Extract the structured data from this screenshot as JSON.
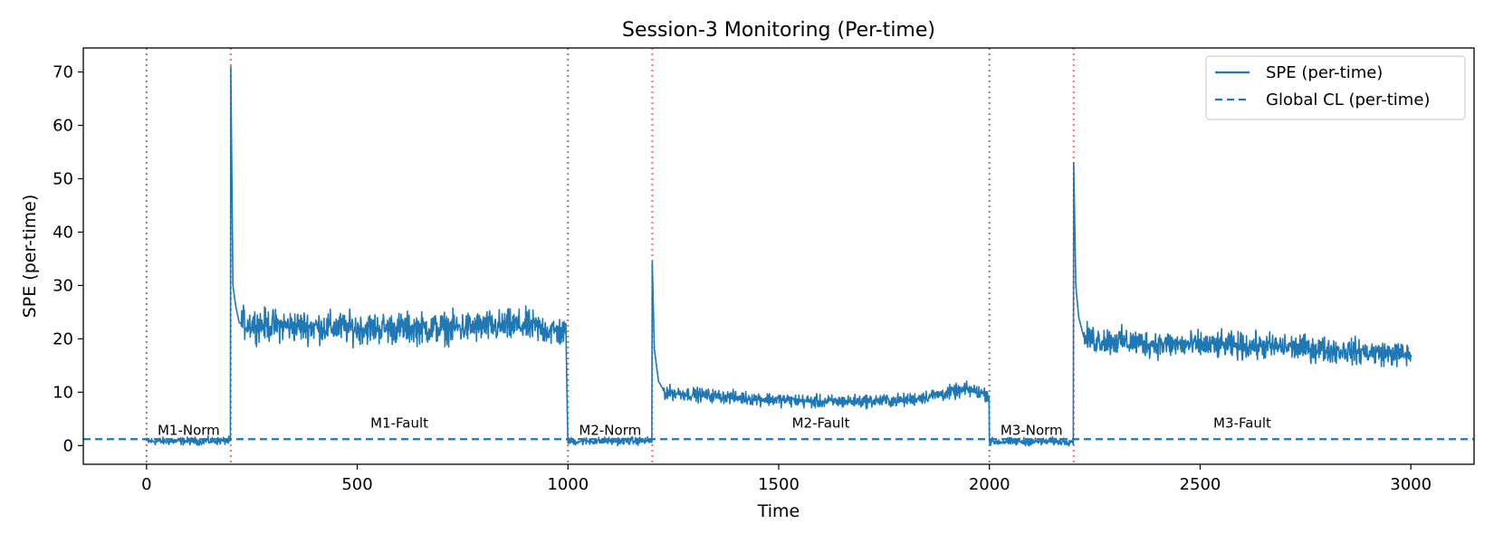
{
  "chart_data": {
    "type": "line",
    "title": "Session-3 Monitoring (Per-time)",
    "xlabel": "Time",
    "ylabel": "SPE (per-time)",
    "xlim": [
      -150,
      3150
    ],
    "ylim": [
      -3.5,
      74.5
    ],
    "xticks": [
      0,
      500,
      1000,
      1500,
      2000,
      2500,
      3000
    ],
    "yticks": [
      0,
      10,
      20,
      30,
      40,
      50,
      60,
      70
    ],
    "grid": false,
    "legend_placement": "top-right",
    "series": [
      {
        "name": "SPE (per-time)",
        "style": "solid",
        "color": "#1f77b4",
        "profile": [
          {
            "x": 0,
            "y": 0.8
          },
          {
            "x": 199,
            "y": 0.9
          },
          {
            "x": 200,
            "y": 71
          },
          {
            "x": 205,
            "y": 30
          },
          {
            "x": 212,
            "y": 26
          },
          {
            "x": 220,
            "y": 23
          },
          {
            "x": 300,
            "y": 22.5
          },
          {
            "x": 500,
            "y": 22
          },
          {
            "x": 700,
            "y": 22
          },
          {
            "x": 900,
            "y": 22.5
          },
          {
            "x": 995,
            "y": 21
          },
          {
            "x": 1000,
            "y": 0.8
          },
          {
            "x": 1199,
            "y": 0.9
          },
          {
            "x": 1200,
            "y": 34.5
          },
          {
            "x": 1205,
            "y": 18
          },
          {
            "x": 1215,
            "y": 12
          },
          {
            "x": 1230,
            "y": 10
          },
          {
            "x": 1400,
            "y": 9
          },
          {
            "x": 1600,
            "y": 8.2
          },
          {
            "x": 1800,
            "y": 8.5
          },
          {
            "x": 1950,
            "y": 10.5
          },
          {
            "x": 1999,
            "y": 9.5
          },
          {
            "x": 2000,
            "y": 0.7
          },
          {
            "x": 2199,
            "y": 0.8
          },
          {
            "x": 2200,
            "y": 53
          },
          {
            "x": 2205,
            "y": 30
          },
          {
            "x": 2212,
            "y": 24
          },
          {
            "x": 2225,
            "y": 20
          },
          {
            "x": 2400,
            "y": 19
          },
          {
            "x": 2700,
            "y": 18.5
          },
          {
            "x": 3000,
            "y": 17
          }
        ]
      },
      {
        "name": "Global CL (per-time)",
        "style": "dashed",
        "color": "#1f77b4",
        "value": 1.2
      }
    ],
    "segment_boundaries": [
      {
        "x": 0,
        "kind": "normal-start",
        "color": "#808080"
      },
      {
        "x": 200,
        "kind": "fault-start",
        "color": "#ff6b6b"
      },
      {
        "x": 1000,
        "kind": "normal-start",
        "color": "#808080"
      },
      {
        "x": 1200,
        "kind": "fault-start",
        "color": "#ff6b6b"
      },
      {
        "x": 2000,
        "kind": "normal-start",
        "color": "#808080"
      },
      {
        "x": 2200,
        "kind": "fault-start",
        "color": "#ff6b6b"
      }
    ],
    "annotations": [
      {
        "text": "M1-Norm",
        "x": 100,
        "y": 2.0
      },
      {
        "text": "M1-Fault",
        "x": 600,
        "y": 3.4
      },
      {
        "text": "M2-Norm",
        "x": 1100,
        "y": 2.0
      },
      {
        "text": "M2-Fault",
        "x": 1600,
        "y": 3.4
      },
      {
        "text": "M3-Norm",
        "x": 2100,
        "y": 2.0
      },
      {
        "text": "M3-Fault",
        "x": 2600,
        "y": 3.4
      }
    ]
  }
}
